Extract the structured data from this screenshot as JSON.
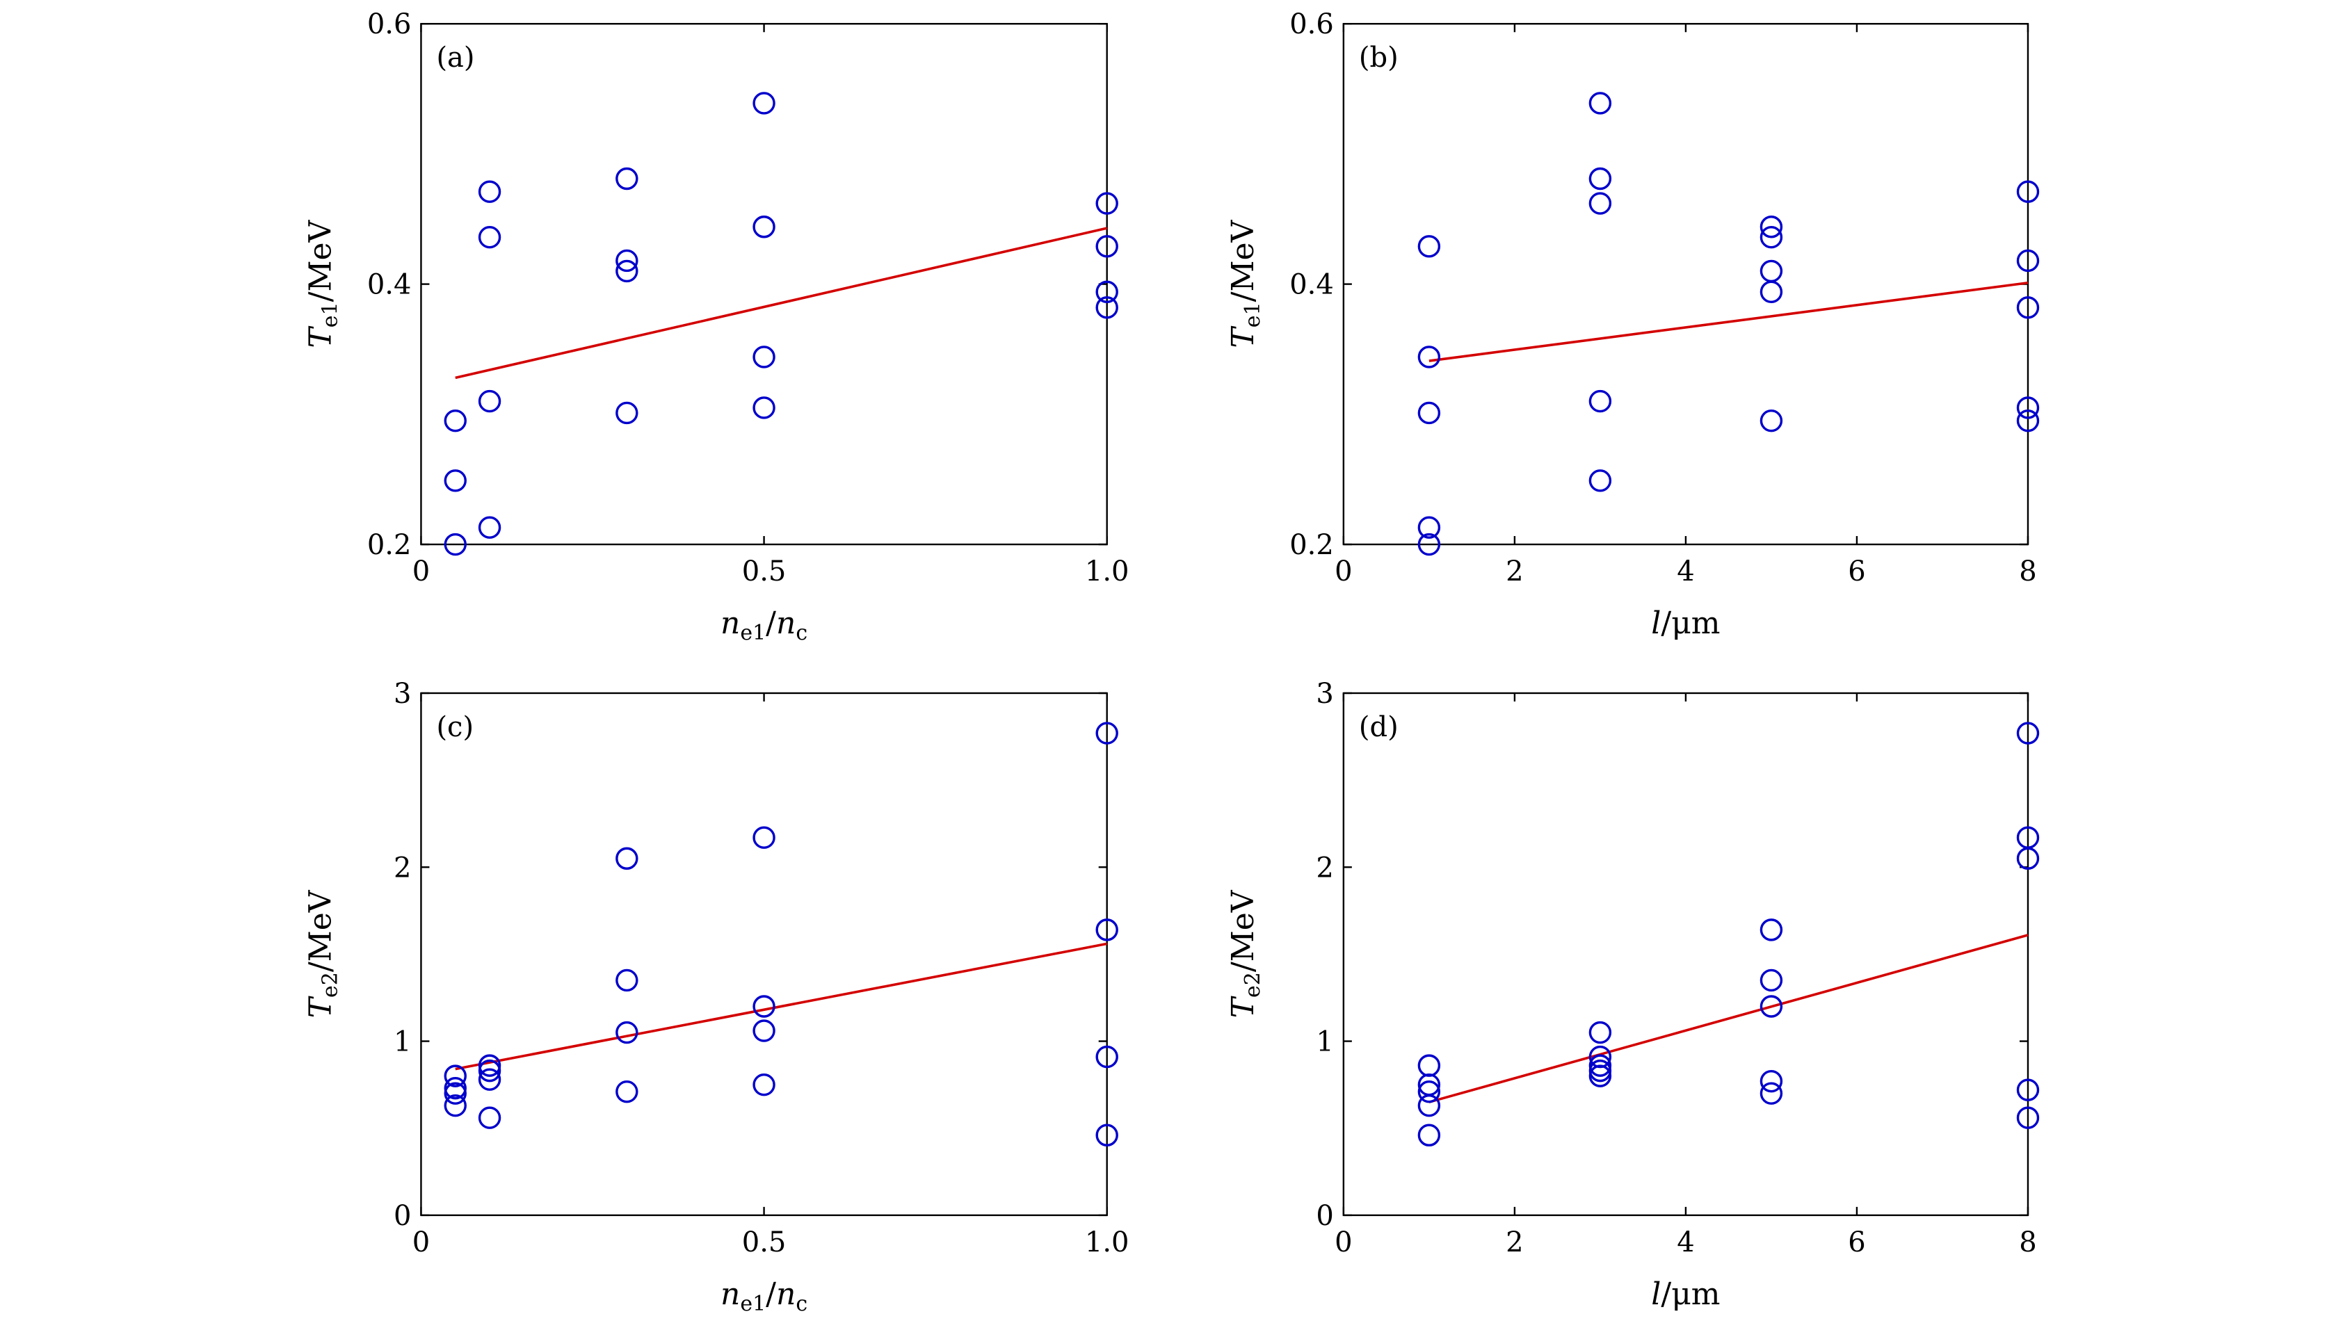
{
  "chart_data": [
    {
      "panel_label": "(a)",
      "type": "scatter",
      "xlabel": {
        "main": "n",
        "sub1": "e1",
        "sep": "/",
        "main2": "n",
        "sub2": "c"
      },
      "ylabel": {
        "main": "T",
        "sub": "e1",
        "unit": "/MeV"
      },
      "xlim": [
        0,
        1.0
      ],
      "ylim": [
        0.2,
        0.6
      ],
      "xticks": [
        "0",
        "0.5",
        "1.0"
      ],
      "xtick_values": [
        0,
        0.5,
        1.0
      ],
      "yticks": [
        "0.2",
        "0.4",
        "0.6"
      ],
      "ytick_values": [
        0.2,
        0.4,
        0.6
      ],
      "points": [
        [
          0.05,
          0.295
        ],
        [
          0.05,
          0.249
        ],
        [
          0.05,
          0.2
        ],
        [
          0.1,
          0.471
        ],
        [
          0.1,
          0.436
        ],
        [
          0.1,
          0.31
        ],
        [
          0.1,
          0.213
        ],
        [
          0.3,
          0.481
        ],
        [
          0.3,
          0.418
        ],
        [
          0.3,
          0.41
        ],
        [
          0.3,
          0.301
        ],
        [
          0.5,
          0.539
        ],
        [
          0.5,
          0.444
        ],
        [
          0.5,
          0.344
        ],
        [
          0.5,
          0.305
        ],
        [
          1.0,
          0.462
        ],
        [
          1.0,
          0.429
        ],
        [
          1.0,
          0.394
        ],
        [
          1.0,
          0.382
        ]
      ],
      "fit_line": [
        [
          0.05,
          0.328
        ],
        [
          1.0,
          0.443
        ]
      ]
    },
    {
      "panel_label": "(b)",
      "type": "scatter",
      "xlabel": {
        "main": "l",
        "unit": "/μm"
      },
      "ylabel": {
        "main": "T",
        "sub": "e1",
        "unit": "/MeV"
      },
      "xlim": [
        0,
        8
      ],
      "ylim": [
        0.2,
        0.6
      ],
      "xticks": [
        "0",
        "2",
        "4",
        "6",
        "8"
      ],
      "xtick_values": [
        0,
        2,
        4,
        6,
        8
      ],
      "yticks": [
        "0.2",
        "0.4",
        "0.6"
      ],
      "ytick_values": [
        0.2,
        0.4,
        0.6
      ],
      "points": [
        [
          1,
          0.429
        ],
        [
          1,
          0.344
        ],
        [
          1,
          0.301
        ],
        [
          1,
          0.213
        ],
        [
          1,
          0.2
        ],
        [
          3,
          0.539
        ],
        [
          3,
          0.481
        ],
        [
          3,
          0.462
        ],
        [
          3,
          0.31
        ],
        [
          3,
          0.249
        ],
        [
          5,
          0.444
        ],
        [
          5,
          0.436
        ],
        [
          5,
          0.41
        ],
        [
          5,
          0.394
        ],
        [
          5,
          0.295
        ],
        [
          8,
          0.471
        ],
        [
          8,
          0.418
        ],
        [
          8,
          0.382
        ],
        [
          8,
          0.305
        ],
        [
          8,
          0.295
        ]
      ],
      "fit_line": [
        [
          1,
          0.341
        ],
        [
          8,
          0.401
        ]
      ]
    },
    {
      "panel_label": "(c)",
      "type": "scatter",
      "xlabel": {
        "main": "n",
        "sub1": "e1",
        "sep": "/",
        "main2": "n",
        "sub2": "c"
      },
      "ylabel": {
        "main": "T",
        "sub": "e2",
        "unit": "/MeV"
      },
      "xlim": [
        0,
        1.0
      ],
      "ylim": [
        0,
        3
      ],
      "xticks": [
        "0",
        "0.5",
        "1.0"
      ],
      "xtick_values": [
        0,
        0.5,
        1.0
      ],
      "yticks": [
        "0",
        "1",
        "2",
        "3"
      ],
      "ytick_values": [
        0,
        1,
        2,
        3
      ],
      "points": [
        [
          0.05,
          0.8
        ],
        [
          0.05,
          0.73
        ],
        [
          0.05,
          0.7
        ],
        [
          0.05,
          0.63
        ],
        [
          0.1,
          0.86
        ],
        [
          0.1,
          0.83
        ],
        [
          0.1,
          0.78
        ],
        [
          0.1,
          0.56
        ],
        [
          0.3,
          2.05
        ],
        [
          0.3,
          1.35
        ],
        [
          0.3,
          1.05
        ],
        [
          0.3,
          0.71
        ],
        [
          0.5,
          2.17
        ],
        [
          0.5,
          1.2
        ],
        [
          0.5,
          1.06
        ],
        [
          0.5,
          0.75
        ],
        [
          1.0,
          2.77
        ],
        [
          1.0,
          1.64
        ],
        [
          1.0,
          0.91
        ],
        [
          1.0,
          0.46
        ]
      ],
      "fit_line": [
        [
          0.05,
          0.84
        ],
        [
          1.0,
          1.56
        ]
      ]
    },
    {
      "panel_label": "(d)",
      "type": "scatter",
      "xlabel": {
        "main": "l",
        "unit": "/μm"
      },
      "ylabel": {
        "main": "T",
        "sub": "e2",
        "unit": "/MeV"
      },
      "xlim": [
        0,
        8
      ],
      "ylim": [
        0,
        3
      ],
      "xticks": [
        "0",
        "2",
        "4",
        "6",
        "8"
      ],
      "xtick_values": [
        0,
        2,
        4,
        6,
        8
      ],
      "yticks": [
        "0",
        "1",
        "2",
        "3"
      ],
      "ytick_values": [
        0,
        1,
        2,
        3
      ],
      "points": [
        [
          1,
          0.86
        ],
        [
          1,
          0.75
        ],
        [
          1,
          0.71
        ],
        [
          1,
          0.63
        ],
        [
          1,
          0.46
        ],
        [
          3,
          1.05
        ],
        [
          3,
          0.91
        ],
        [
          3,
          0.86
        ],
        [
          3,
          0.83
        ],
        [
          3,
          0.8
        ],
        [
          5,
          1.64
        ],
        [
          5,
          1.35
        ],
        [
          5,
          1.2
        ],
        [
          5,
          0.77
        ],
        [
          5,
          0.7
        ],
        [
          8,
          2.77
        ],
        [
          8,
          2.17
        ],
        [
          8,
          2.05
        ],
        [
          8,
          0.72
        ],
        [
          8,
          0.56
        ]
      ],
      "fit_line": [
        [
          1,
          0.65
        ],
        [
          8,
          1.61
        ]
      ]
    }
  ]
}
